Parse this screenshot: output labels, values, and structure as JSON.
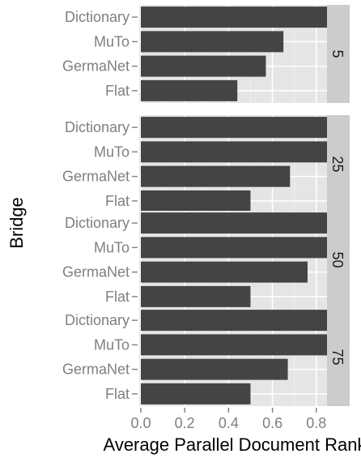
{
  "chart_data": {
    "type": "bar",
    "orientation": "horizontal",
    "facet_by": "",
    "xlabel": "Average Parallel Document Rank",
    "ylabel": "Bridge",
    "xlim": [
      0,
      1.0
    ],
    "xticks": [
      "0.0",
      "0.2",
      "0.4",
      "0.6",
      "0.8"
    ],
    "categories": [
      "Dictionary",
      "MuTo",
      "GermaNet",
      "Flat"
    ],
    "panels": [
      {
        "facet": "5",
        "values": [
          0.85,
          0.65,
          0.57,
          0.44
        ]
      },
      {
        "facet": "25",
        "values": [
          0.98,
          0.9,
          0.68,
          0.5
        ]
      },
      {
        "facet": "50",
        "values": [
          0.98,
          0.89,
          0.76,
          0.5
        ]
      },
      {
        "facet": "75",
        "values": [
          0.98,
          0.91,
          0.67,
          0.5
        ]
      }
    ],
    "grid": true,
    "colors": {
      "bar": "#444444",
      "panel_bg": "#e5e5e5",
      "grid_major": "#ffffff",
      "grid_minor": "#f2f2f2",
      "strip_bg": "#cccccc",
      "tick_label": "#7f7f7f",
      "axis_title": "#000000"
    }
  }
}
